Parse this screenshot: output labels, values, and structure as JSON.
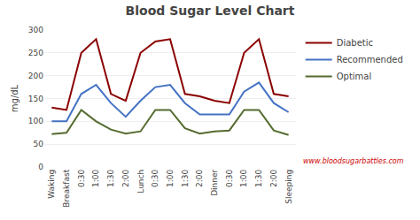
{
  "chart_data": {
    "type": "line",
    "title": "Blood Sugar Level Chart",
    "y_label": "mg/dL",
    "categories": [
      "Waking",
      "Breakfast",
      "0:30",
      "1:00",
      "1:30",
      "2:00",
      "Lunch",
      "0:30",
      "1:00",
      "1:30",
      "2:00",
      "Dinner",
      "0:30",
      "1:00",
      "1:30",
      "2:00",
      "Sleeping"
    ],
    "series": [
      {
        "name": "Diabetic",
        "color": "#8B0000",
        "values": [
          130,
          125,
          250,
          280,
          160,
          145,
          250,
          275,
          280,
          160,
          155,
          145,
          140,
          250,
          280,
          160,
          155
        ]
      },
      {
        "name": "Recommended",
        "color": "#4472C4",
        "values": [
          100,
          100,
          160,
          180,
          140,
          110,
          145,
          175,
          180,
          140,
          115,
          115,
          115,
          165,
          185,
          140,
          120
        ]
      },
      {
        "name": "Optimal",
        "color": "#556B2F",
        "values": [
          72,
          75,
          125,
          100,
          82,
          73,
          78,
          125,
          125,
          85,
          73,
          78,
          80,
          125,
          125,
          80,
          70
        ]
      }
    ],
    "ylim": [
      0,
      300
    ],
    "yticks": [
      0,
      50,
      100,
      150,
      200,
      250,
      300
    ],
    "grid": true,
    "legend": "right",
    "annotations": [
      {
        "text": "www.bloodsugarbattles.com",
        "color": "#CC0000"
      }
    ]
  }
}
